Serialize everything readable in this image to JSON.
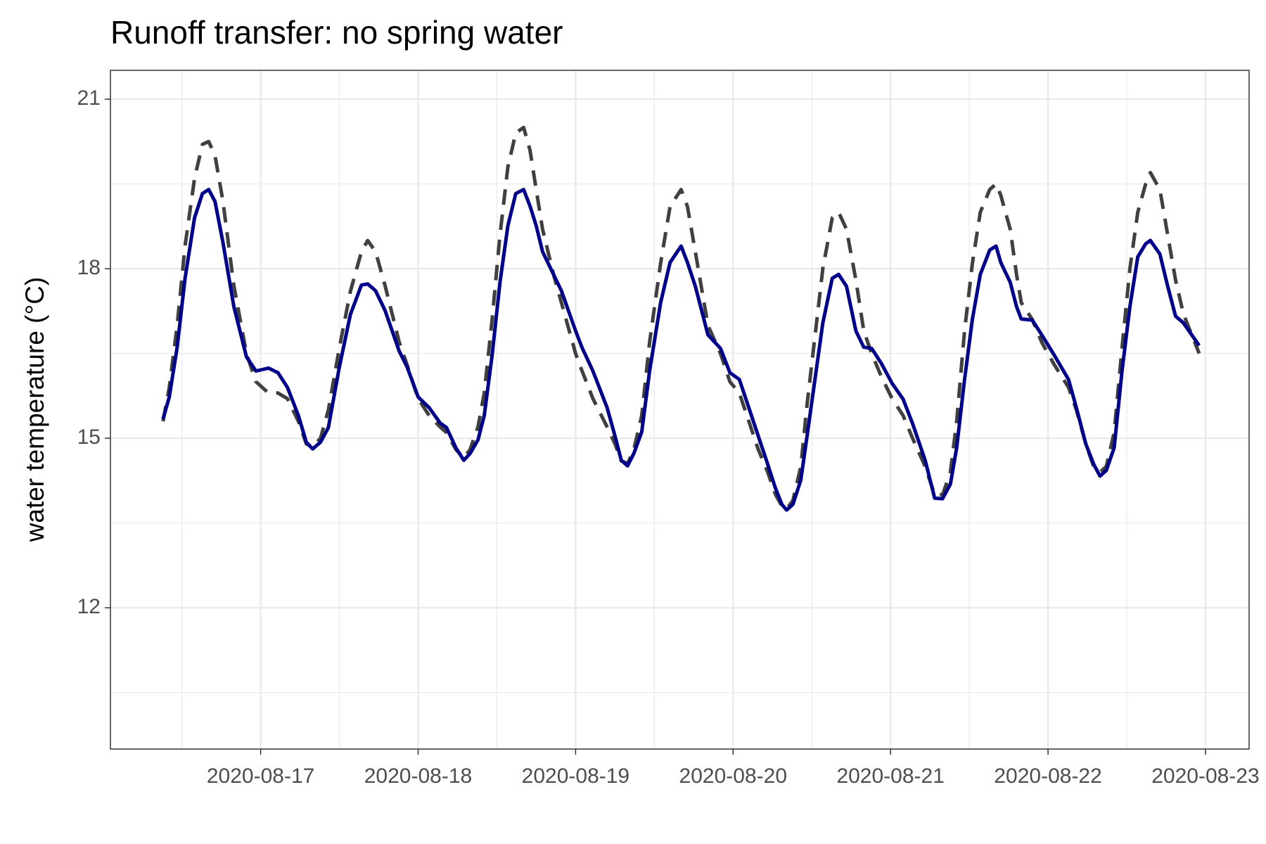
{
  "chart_data": {
    "type": "line",
    "title": "Runoff transfer: no spring water",
    "y_label": "water temperature (°C)",
    "xlim": [
      -0.954,
      6.277
    ],
    "xticks": [
      {
        "value": 0,
        "label": "2020-08-17"
      },
      {
        "value": 1,
        "label": "2020-08-18"
      },
      {
        "value": 2,
        "label": "2020-08-19"
      },
      {
        "value": 3,
        "label": "2020-08-20"
      },
      {
        "value": 4,
        "label": "2020-08-21"
      },
      {
        "value": 5,
        "label": "2020-08-22"
      },
      {
        "value": 6,
        "label": "2020-08-23"
      }
    ],
    "ylim": [
      9.5,
      21.51
    ],
    "yticks": [
      12,
      15,
      18,
      21
    ],
    "grid": true,
    "x": [
      -0.62,
      -0.58,
      -0.53,
      -0.48,
      -0.42,
      -0.37,
      -0.33,
      -0.29,
      -0.24,
      -0.17,
      -0.09,
      -0.03,
      0.05,
      0.11,
      0.17,
      0.24,
      0.29,
      0.33,
      0.38,
      0.43,
      0.5,
      0.57,
      0.64,
      0.68,
      0.73,
      0.79,
      0.88,
      0.93,
      1.0,
      1.07,
      1.14,
      1.18,
      1.24,
      1.29,
      1.33,
      1.38,
      1.42,
      1.47,
      1.52,
      1.57,
      1.62,
      1.67,
      1.71,
      1.75,
      1.79,
      1.86,
      1.91,
      2.0,
      2.04,
      2.11,
      2.2,
      2.25,
      2.29,
      2.33,
      2.37,
      2.42,
      2.47,
      2.54,
      2.6,
      2.67,
      2.71,
      2.76,
      2.84,
      2.92,
      2.98,
      3.04,
      3.1,
      3.16,
      3.22,
      3.27,
      3.31,
      3.34,
      3.38,
      3.43,
      3.47,
      3.52,
      3.57,
      3.63,
      3.67,
      3.72,
      3.78,
      3.83,
      3.88,
      3.94,
      4.01,
      4.08,
      4.14,
      4.22,
      4.28,
      4.33,
      4.38,
      4.42,
      4.47,
      4.52,
      4.57,
      4.63,
      4.67,
      4.7,
      4.76,
      4.8,
      4.83,
      4.9,
      4.96,
      5.04,
      5.13,
      5.18,
      5.24,
      5.29,
      5.33,
      5.37,
      5.42,
      5.47,
      5.52,
      5.57,
      5.62,
      5.65,
      5.71,
      5.76,
      5.81,
      5.86,
      5.96
    ],
    "series": [
      {
        "color": "#404040",
        "line_style": "dashed",
        "values": [
          15.3,
          15.9,
          17.0,
          18.4,
          19.6,
          20.2,
          20.25,
          20.0,
          19.2,
          17.7,
          16.5,
          16.0,
          15.8,
          15.8,
          15.7,
          15.3,
          14.9,
          14.85,
          15.0,
          15.5,
          16.6,
          17.6,
          18.3,
          18.5,
          18.3,
          17.7,
          16.7,
          16.3,
          15.7,
          15.4,
          15.2,
          15.1,
          14.8,
          14.65,
          14.8,
          15.2,
          15.8,
          17.1,
          18.6,
          19.8,
          20.4,
          20.5,
          20.1,
          19.4,
          18.7,
          17.9,
          17.4,
          16.5,
          16.2,
          15.7,
          15.2,
          14.9,
          14.6,
          14.55,
          14.8,
          15.4,
          16.7,
          18.1,
          19.1,
          19.4,
          19.1,
          18.3,
          17.0,
          16.5,
          16.0,
          15.8,
          15.3,
          14.8,
          14.4,
          14.0,
          13.8,
          13.75,
          13.9,
          14.5,
          15.6,
          16.8,
          18.0,
          18.9,
          19.0,
          18.7,
          17.8,
          16.9,
          16.5,
          16.1,
          15.7,
          15.4,
          15.0,
          14.5,
          14.0,
          14.0,
          14.4,
          15.3,
          16.9,
          18.1,
          19.0,
          19.4,
          19.5,
          19.3,
          18.7,
          17.9,
          17.4,
          17.1,
          16.7,
          16.3,
          15.9,
          15.5,
          14.9,
          14.5,
          14.4,
          14.5,
          15.1,
          16.6,
          18.0,
          19.0,
          19.5,
          19.7,
          19.4,
          18.6,
          17.8,
          17.2,
          16.5
        ]
      },
      {
        "color": "#00008b",
        "line_style": "solid",
        "values": [
          15.34,
          15.73,
          16.61,
          17.83,
          18.9,
          19.33,
          19.4,
          19.19,
          18.47,
          17.33,
          16.44,
          16.19,
          16.24,
          16.16,
          15.9,
          15.4,
          14.93,
          14.81,
          14.93,
          15.19,
          16.26,
          17.19,
          17.71,
          17.73,
          17.61,
          17.26,
          16.54,
          16.26,
          15.73,
          15.54,
          15.27,
          15.19,
          14.83,
          14.61,
          14.73,
          14.97,
          15.4,
          16.47,
          17.76,
          18.76,
          19.33,
          19.4,
          19.11,
          18.76,
          18.3,
          17.9,
          17.61,
          16.9,
          16.61,
          16.19,
          15.54,
          15.04,
          14.61,
          14.51,
          14.73,
          15.11,
          16.19,
          17.4,
          18.11,
          18.4,
          18.11,
          17.69,
          16.83,
          16.59,
          16.16,
          16.04,
          15.54,
          15.04,
          14.54,
          14.11,
          13.83,
          13.73,
          13.83,
          14.26,
          15.04,
          16.04,
          17.04,
          17.83,
          17.9,
          17.69,
          16.9,
          16.61,
          16.59,
          16.33,
          15.97,
          15.69,
          15.26,
          14.61,
          13.94,
          13.93,
          14.19,
          14.83,
          16.04,
          17.11,
          17.9,
          18.33,
          18.4,
          18.11,
          17.76,
          17.33,
          17.11,
          17.09,
          16.83,
          16.47,
          16.04,
          15.54,
          14.9,
          14.54,
          14.33,
          14.43,
          14.83,
          16.19,
          17.33,
          18.21,
          18.44,
          18.5,
          18.26,
          17.69,
          17.16,
          17.04,
          16.64
        ]
      }
    ]
  }
}
